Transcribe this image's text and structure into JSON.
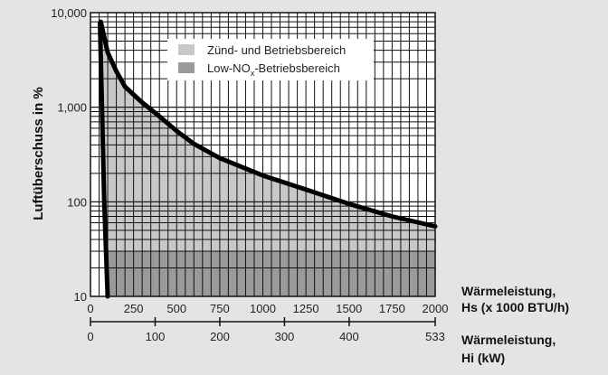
{
  "chart_data": {
    "type": "area",
    "ylabel": "Luftüberschuss in %",
    "yscale": "log",
    "ylim": [
      10,
      10000
    ],
    "y_ticks": [
      10,
      100,
      1000,
      10000
    ],
    "y_tick_labels": [
      "10",
      "100",
      "1,000",
      "10,000"
    ],
    "grid": true,
    "x_axes": [
      {
        "label_line1": "Wärmeleistung,",
        "label_line2": "Hs (x 1000 BTU/h)",
        "range": [
          0,
          2000
        ],
        "ticks": [
          0,
          250,
          500,
          750,
          1000,
          1250,
          1500,
          1750,
          2000
        ],
        "tick_labels": [
          "0",
          "250",
          "500",
          "750",
          "1000",
          "1250",
          "1500",
          "1750",
          "2000"
        ]
      },
      {
        "label_line1": "Wärmeleistung,",
        "label_line2": "Hi (kW)",
        "range": [
          0,
          533
        ],
        "ticks": [
          0,
          100,
          200,
          300,
          400,
          533
        ],
        "tick_labels": [
          "0",
          "100",
          "200",
          "300",
          "400",
          "533"
        ]
      }
    ],
    "legend": {
      "placement": "top-center",
      "entries": [
        {
          "label": "Zünd- und Betriebsbereich",
          "color": "#c8c8c8"
        },
        {
          "label_main": "Low-NO",
          "label_sub": "x",
          "label_end": "-Betriebsbereich",
          "color": "#9a9a9a"
        }
      ]
    },
    "boundary_upper": {
      "x": [
        60,
        100,
        150,
        200,
        300,
        400,
        500,
        600,
        750,
        1000,
        1250,
        1500,
        1750,
        2000
      ],
      "y": [
        8000,
        3800,
        2400,
        1650,
        1120,
        800,
        560,
        410,
        290,
        190,
        135,
        95,
        70,
        55
      ]
    },
    "boundary_left": {
      "x": [
        55,
        80,
        100
      ],
      "y": [
        7800,
        100,
        10
      ]
    },
    "low_nox_region": {
      "y_max": 30
    }
  }
}
